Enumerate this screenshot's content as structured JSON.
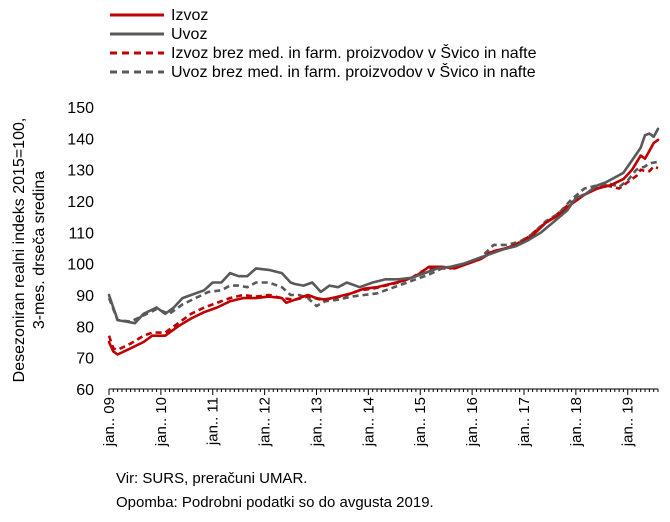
{
  "chart_data": {
    "type": "line",
    "title": "",
    "ylabel_line1": "Desezoniran realni indeks 2015=100,",
    "ylabel_line2": "3-mes. drseča sredina",
    "xlabel": "",
    "ylim": [
      60,
      150
    ],
    "yticks": [
      60,
      70,
      80,
      90,
      100,
      110,
      120,
      130,
      140,
      150
    ],
    "x_start": "2009-01",
    "x_end": "2019-08",
    "xtick_labels": [
      "jan.. 09",
      "jan.. 10",
      "jan.. 11",
      "jan.. 12",
      "jan.. 13",
      "jan.. 14",
      "jan.. 15",
      "jan.. 16",
      "jan.. 17",
      "jan.. 18",
      "jan.. 19"
    ],
    "grid": false,
    "legend_position": "top",
    "series": [
      {
        "name": "Izvoz",
        "color": "#c00000",
        "style": "solid",
        "points": [
          [
            "2009-01",
            75
          ],
          [
            "2009-02",
            72
          ],
          [
            "2009-03",
            71
          ],
          [
            "2009-06",
            73
          ],
          [
            "2009-09",
            75
          ],
          [
            "2009-11",
            77
          ],
          [
            "2010-02",
            77
          ],
          [
            "2010-05",
            80
          ],
          [
            "2010-08",
            82.5
          ],
          [
            "2010-11",
            84.5
          ],
          [
            "2011-02",
            86
          ],
          [
            "2011-05",
            88
          ],
          [
            "2011-08",
            89
          ],
          [
            "2011-11",
            89
          ],
          [
            "2012-02",
            89.5
          ],
          [
            "2012-05",
            89
          ],
          [
            "2012-06",
            87.5
          ],
          [
            "2012-08",
            88.5
          ],
          [
            "2012-11",
            90
          ],
          [
            "2013-01",
            89
          ],
          [
            "2013-03",
            88.5
          ],
          [
            "2013-06",
            89.5
          ],
          [
            "2013-09",
            90.5
          ],
          [
            "2013-12",
            92
          ],
          [
            "2014-03",
            92.5
          ],
          [
            "2014-06",
            93.5
          ],
          [
            "2014-09",
            94.5
          ],
          [
            "2014-12",
            96
          ],
          [
            "2015-03",
            99
          ],
          [
            "2015-06",
            99
          ],
          [
            "2015-09",
            98.5
          ],
          [
            "2015-12",
            100
          ],
          [
            "2016-03",
            101.5
          ],
          [
            "2016-06",
            104
          ],
          [
            "2016-09",
            105
          ],
          [
            "2016-12",
            106.5
          ],
          [
            "2017-03",
            109
          ],
          [
            "2017-06",
            113
          ],
          [
            "2017-09",
            115.5
          ],
          [
            "2017-12",
            119
          ],
          [
            "2018-03",
            122
          ],
          [
            "2018-06",
            124
          ],
          [
            "2018-09",
            125
          ],
          [
            "2018-12",
            127
          ],
          [
            "2019-02",
            130
          ],
          [
            "2019-04",
            134.5
          ],
          [
            "2019-05",
            133.5
          ],
          [
            "2019-06",
            136
          ],
          [
            "2019-07",
            138.5
          ],
          [
            "2019-08",
            139.5
          ]
        ]
      },
      {
        "name": "Uvoz",
        "color": "#595959",
        "style": "solid",
        "points": [
          [
            "2009-01",
            90
          ],
          [
            "2009-02",
            86
          ],
          [
            "2009-03",
            82
          ],
          [
            "2009-05",
            81.5
          ],
          [
            "2009-07",
            81
          ],
          [
            "2009-09",
            84
          ],
          [
            "2009-12",
            86
          ],
          [
            "2010-02",
            84
          ],
          [
            "2010-04",
            86
          ],
          [
            "2010-06",
            89
          ],
          [
            "2010-08",
            90
          ],
          [
            "2010-11",
            91.5
          ],
          [
            "2011-01",
            94
          ],
          [
            "2011-03",
            94
          ],
          [
            "2011-05",
            97
          ],
          [
            "2011-07",
            96
          ],
          [
            "2011-09",
            96
          ],
          [
            "2011-11",
            98.5
          ],
          [
            "2012-02",
            98
          ],
          [
            "2012-05",
            97
          ],
          [
            "2012-07",
            94
          ],
          [
            "2012-08",
            93.5
          ],
          [
            "2012-10",
            93
          ],
          [
            "2012-12",
            94
          ],
          [
            "2013-02",
            91
          ],
          [
            "2013-04",
            93
          ],
          [
            "2013-06",
            92.5
          ],
          [
            "2013-08",
            94
          ],
          [
            "2013-11",
            92.5
          ],
          [
            "2014-02",
            94
          ],
          [
            "2014-05",
            95
          ],
          [
            "2014-08",
            95
          ],
          [
            "2014-11",
            95.5
          ],
          [
            "2015-02",
            97
          ],
          [
            "2015-05",
            98.5
          ],
          [
            "2015-08",
            99
          ],
          [
            "2015-11",
            100
          ],
          [
            "2016-02",
            101.5
          ],
          [
            "2016-05",
            103
          ],
          [
            "2016-08",
            104.5
          ],
          [
            "2016-11",
            105.5
          ],
          [
            "2017-02",
            107.5
          ],
          [
            "2017-05",
            110
          ],
          [
            "2017-08",
            113.5
          ],
          [
            "2017-11",
            117
          ],
          [
            "2018-01",
            121
          ],
          [
            "2018-03",
            122
          ],
          [
            "2018-06",
            125
          ],
          [
            "2018-08",
            126
          ],
          [
            "2018-10",
            127.5
          ],
          [
            "2018-12",
            129
          ],
          [
            "2019-02",
            133
          ],
          [
            "2019-04",
            137
          ],
          [
            "2019-05",
            141
          ],
          [
            "2019-06",
            141.5
          ],
          [
            "2019-07",
            140.5
          ],
          [
            "2019-08",
            143
          ]
        ]
      },
      {
        "name": "Izvoz brez med. in farm. proizvodov v Švico in nafte",
        "color": "#c00000",
        "style": "dashed",
        "points": [
          [
            "2009-01",
            77
          ],
          [
            "2009-02",
            73
          ],
          [
            "2009-03",
            72.5
          ],
          [
            "2009-06",
            74.5
          ],
          [
            "2009-09",
            77
          ],
          [
            "2009-11",
            78
          ],
          [
            "2010-02",
            78
          ],
          [
            "2010-05",
            81
          ],
          [
            "2010-08",
            84
          ],
          [
            "2010-11",
            86
          ],
          [
            "2011-02",
            87.5
          ],
          [
            "2011-05",
            89
          ],
          [
            "2011-08",
            90
          ],
          [
            "2011-11",
            89.5
          ],
          [
            "2012-02",
            90
          ],
          [
            "2012-05",
            89
          ],
          [
            "2012-08",
            88.5
          ],
          [
            "2012-11",
            89.5
          ],
          [
            "2013-02",
            88.5
          ],
          [
            "2013-05",
            89
          ],
          [
            "2013-08",
            90
          ],
          [
            "2013-11",
            91.5
          ],
          [
            "2014-02",
            92
          ],
          [
            "2014-05",
            93
          ],
          [
            "2014-08",
            94
          ],
          [
            "2014-11",
            95.5
          ],
          [
            "2015-02",
            98
          ],
          [
            "2015-05",
            98.5
          ],
          [
            "2015-08",
            98.5
          ],
          [
            "2015-11",
            99.5
          ],
          [
            "2016-02",
            101
          ],
          [
            "2016-05",
            103.5
          ],
          [
            "2016-08",
            104.5
          ],
          [
            "2016-11",
            106
          ],
          [
            "2017-02",
            108.5
          ],
          [
            "2017-05",
            112
          ],
          [
            "2017-08",
            115
          ],
          [
            "2017-11",
            118.5
          ],
          [
            "2018-02",
            121.5
          ],
          [
            "2018-05",
            123.5
          ],
          [
            "2018-08",
            125
          ],
          [
            "2018-11",
            124
          ],
          [
            "2019-01",
            126
          ],
          [
            "2019-03",
            128
          ],
          [
            "2019-04",
            130
          ],
          [
            "2019-05",
            129.5
          ],
          [
            "2019-06",
            129.5
          ],
          [
            "2019-07",
            131
          ],
          [
            "2019-08",
            130.5
          ]
        ]
      },
      {
        "name": "Uvoz brez med. in farm. proizvodov v Švico in nafte",
        "color": "#595959",
        "style": "dashed",
        "points": [
          [
            "2009-01",
            89
          ],
          [
            "2009-02",
            85.5
          ],
          [
            "2009-03",
            82
          ],
          [
            "2009-06",
            81.5
          ],
          [
            "2009-09",
            83.5
          ],
          [
            "2009-12",
            85.5
          ],
          [
            "2010-03",
            84
          ],
          [
            "2010-06",
            87
          ],
          [
            "2010-09",
            89
          ],
          [
            "2010-12",
            91
          ],
          [
            "2011-03",
            91.5
          ],
          [
            "2011-05",
            93
          ],
          [
            "2011-07",
            93
          ],
          [
            "2011-09",
            92.5
          ],
          [
            "2011-11",
            94
          ],
          [
            "2012-02",
            94
          ],
          [
            "2012-05",
            92.5
          ],
          [
            "2012-07",
            90
          ],
          [
            "2012-09",
            90
          ],
          [
            "2012-11",
            89
          ],
          [
            "2013-01",
            86.5
          ],
          [
            "2013-03",
            88
          ],
          [
            "2013-06",
            88.5
          ],
          [
            "2013-09",
            89.5
          ],
          [
            "2013-12",
            90
          ],
          [
            "2014-03",
            90.5
          ],
          [
            "2014-06",
            92
          ],
          [
            "2014-09",
            93.5
          ],
          [
            "2014-12",
            95
          ],
          [
            "2015-03",
            96.5
          ],
          [
            "2015-06",
            98.5
          ],
          [
            "2015-09",
            99
          ],
          [
            "2015-12",
            100
          ],
          [
            "2016-03",
            102
          ],
          [
            "2016-06",
            106
          ],
          [
            "2016-09",
            106
          ],
          [
            "2016-12",
            107
          ],
          [
            "2017-03",
            109.5
          ],
          [
            "2017-06",
            113.5
          ],
          [
            "2017-09",
            116
          ],
          [
            "2017-12",
            120.5
          ],
          [
            "2018-03",
            124
          ],
          [
            "2018-06",
            125
          ],
          [
            "2018-09",
            125.5
          ],
          [
            "2018-11",
            124.5
          ],
          [
            "2019-01",
            126.5
          ],
          [
            "2019-03",
            130
          ],
          [
            "2019-05",
            131
          ],
          [
            "2019-06",
            132
          ],
          [
            "2019-08",
            132.5
          ]
        ]
      }
    ]
  },
  "footer": {
    "source": "Vir: SURS, preračuni UMAR.",
    "note": "Opomba: Podrobni podatki so do avgusta 2019."
  }
}
